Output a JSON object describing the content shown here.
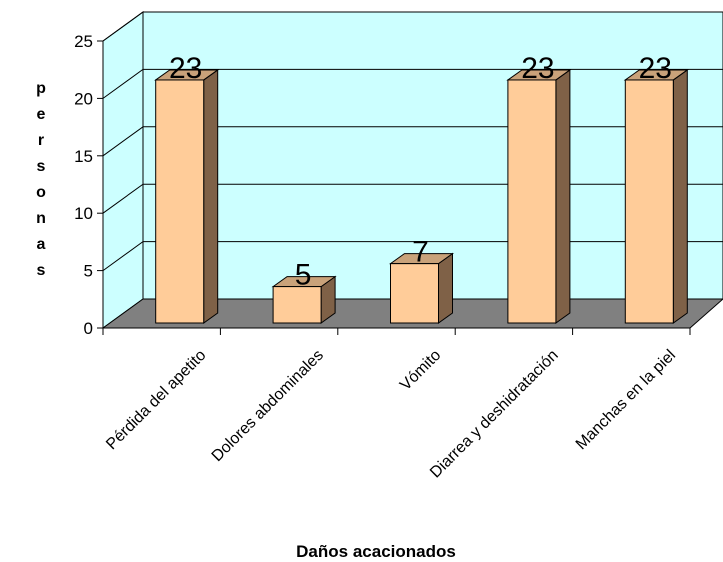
{
  "chart_data": {
    "type": "bar",
    "categories": [
      "Pérdida del apetito",
      "Dolores abdominales",
      "Vómito",
      "Diarrea y deshidratación",
      "Manchas en la piel"
    ],
    "values": [
      23,
      5,
      7,
      23,
      23
    ],
    "data_labels": [
      "23",
      "5",
      "7",
      "23",
      "23"
    ],
    "xlabel": "Daños acacionados",
    "ylabel": "personas",
    "ylim": [
      0,
      25
    ],
    "yticks": [
      0,
      5,
      10,
      15,
      20,
      25
    ],
    "grid": true,
    "three_d": true,
    "colors": {
      "bar_front": "#ffcc99",
      "bar_side": "#7f6147",
      "bar_top": "#c9a27a",
      "back_wall": "#ccffff",
      "floor": "#808080",
      "gridline": "#000000"
    }
  }
}
